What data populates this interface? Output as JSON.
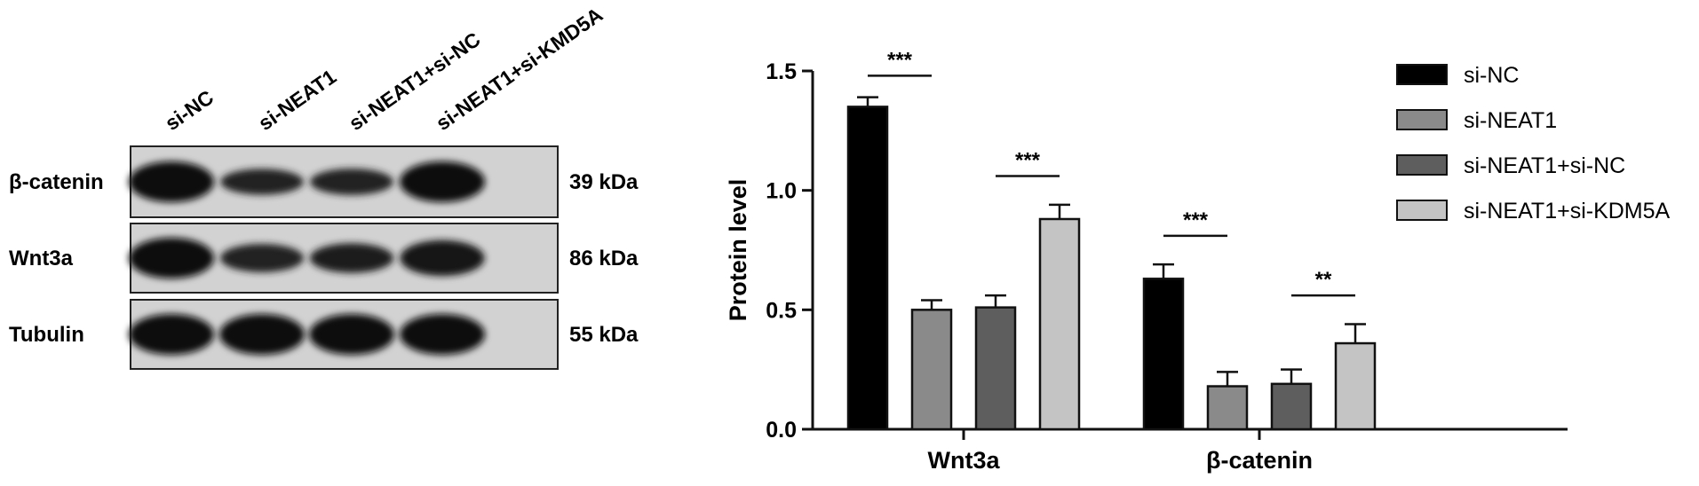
{
  "blot": {
    "lanes": [
      "si-NC",
      "si-NEAT1",
      "si-NEAT1+si-NC",
      "si-NEAT1+si-KMD5A"
    ],
    "rows": [
      {
        "label": "β-catenin",
        "size": "39 kDa",
        "intensity": [
          1.0,
          0.4,
          0.42,
          1.0
        ]
      },
      {
        "label": "Wnt3a",
        "size": "86 kDa",
        "intensity": [
          1.0,
          0.5,
          0.55,
          0.8
        ]
      },
      {
        "label": "Tubulin",
        "size": "55 kDa",
        "intensity": [
          1.0,
          1.0,
          1.0,
          1.0
        ]
      }
    ]
  },
  "chart_data": {
    "type": "bar",
    "ylabel": "Protein level",
    "xlabel": "",
    "ylim": [
      0,
      1.5
    ],
    "yticks": [
      "0.0",
      "0.5",
      "1.0",
      "1.5"
    ],
    "categories": [
      "Wnt3a",
      "β-catenin"
    ],
    "series": [
      {
        "name": "si-NC",
        "values": [
          1.35,
          0.63
        ],
        "errors": [
          0.04,
          0.06
        ],
        "color": "#000000"
      },
      {
        "name": "si-NEAT1",
        "values": [
          0.5,
          0.18
        ],
        "errors": [
          0.04,
          0.06
        ],
        "color": "#8a8a8a"
      },
      {
        "name": "si-NEAT1+si-NC",
        "values": [
          0.51,
          0.19
        ],
        "errors": [
          0.05,
          0.06
        ],
        "color": "#5e5e5e"
      },
      {
        "name": "si-NEAT1+si-KDM5A",
        "values": [
          0.88,
          0.36
        ],
        "errors": [
          0.06,
          0.08
        ],
        "color": "#c4c4c4"
      }
    ],
    "significance": [
      {
        "category": 0,
        "from": 0,
        "to": 1,
        "label": "***",
        "y": 1.48
      },
      {
        "category": 0,
        "from": 2,
        "to": 3,
        "label": "***",
        "y": 1.06
      },
      {
        "category": 1,
        "from": 0,
        "to": 1,
        "label": "***",
        "y": 0.81
      },
      {
        "category": 1,
        "from": 2,
        "to": 3,
        "label": "**",
        "y": 0.56
      }
    ],
    "legend_position": "top-right",
    "grid": false
  }
}
